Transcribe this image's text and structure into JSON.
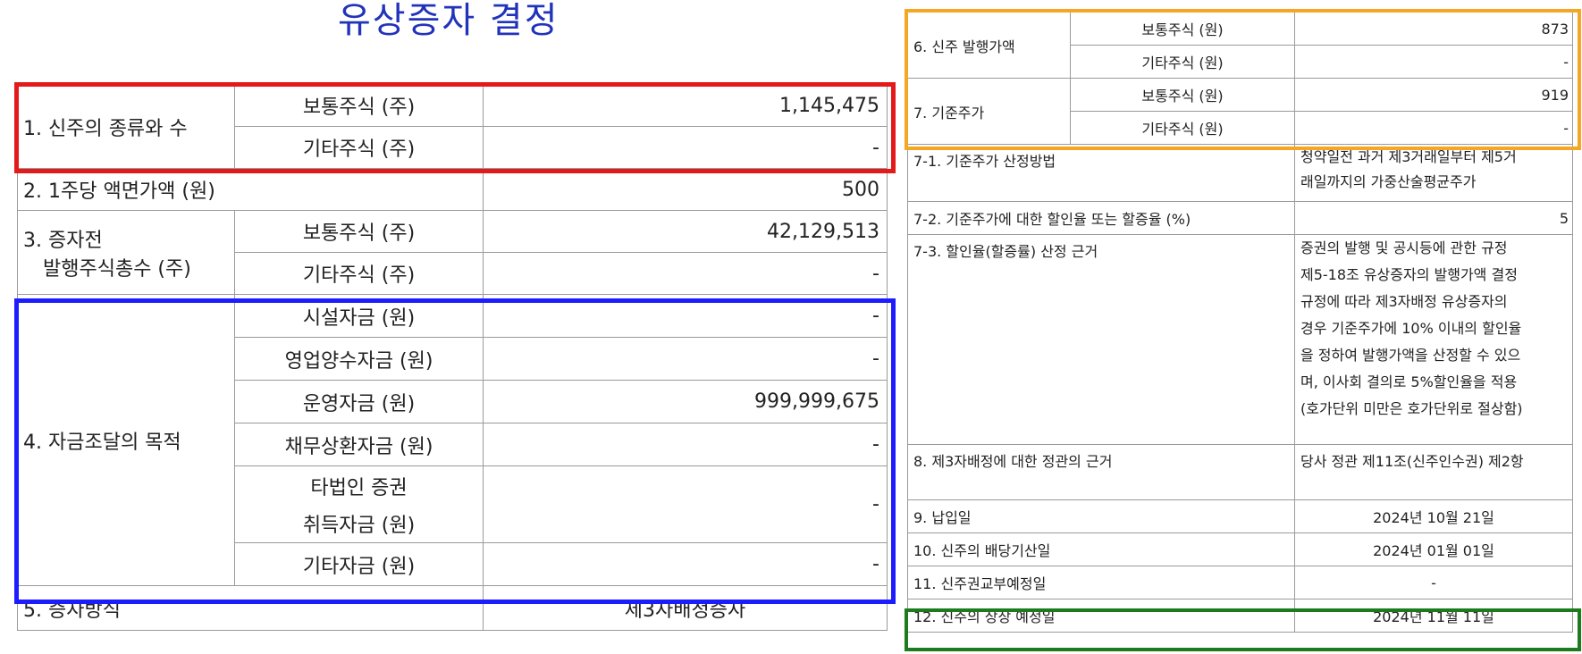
{
  "title": "유상증자 결정",
  "left": {
    "r1_label": "1. 신주의 종류와 수",
    "r1a_sub": "보통주식 (주)",
    "r1a_val": "1,145,475",
    "r1b_sub": "기타주식 (주)",
    "r1b_val": "-",
    "r2_label": "2. 1주당 액면가액 (원)",
    "r2_val": "500",
    "r3_label_1": "3. 증자전",
    "r3_label_2": "발행주식총수 (주)",
    "r3a_sub": "보통주식 (주)",
    "r3a_val": "42,129,513",
    "r3b_sub": "기타주식 (주)",
    "r3b_val": "-",
    "r4_label": "4. 자금조달의 목적",
    "r4_items": [
      {
        "sub": "시설자금 (원)",
        "val": "-"
      },
      {
        "sub": "영업양수자금 (원)",
        "val": "-"
      },
      {
        "sub": "운영자금 (원)",
        "val": "999,999,675"
      },
      {
        "sub": "채무상환자금 (원)",
        "val": "-"
      },
      {
        "sub_1": "타법인 증권",
        "sub_2": "취득자금 (원)",
        "val": "-"
      },
      {
        "sub": "기타자금 (원)",
        "val": "-"
      }
    ],
    "r5_label": "5. 증자방식",
    "r5_val": "제3자배정증자"
  },
  "right": {
    "r6_label": "6. 신주 발행가액",
    "r6a_sub": "보통주식 (원)",
    "r6a_val": "873",
    "r6b_sub": "기타주식 (원)",
    "r6b_val": "-",
    "r7_label": "7. 기준주가",
    "r7a_sub": "보통주식 (원)",
    "r7a_val": "919",
    "r7b_sub": "기타주식 (원)",
    "r7b_val": "-",
    "r71_label": "7-1. 기준주가 산정방법",
    "r71_val_1": "청약일전 과거 제3거래일부터 제5거",
    "r71_val_2": "래일까지의 가중산술평균주가",
    "r72_label": "7-2. 기준주가에 대한 할인율 또는 할증율 (%)",
    "r72_val": "5",
    "r73_label": "7-3. 할인율(할증률) 산정 근거",
    "r73_lines": [
      "증권의 발행 및 공시등에 관한 규정",
      "제5-18조 유상증자의 발행가액 결정",
      "규정에 따라 제3자배정 유상증자의",
      "경우 기준주가에 10% 이내의 할인율",
      "을 정하여 발행가액을 산정할 수 있으",
      "며, 이사회 결의로 5%할인율을 적용",
      "(호가단위 미만은 호가단위로 절상함)"
    ],
    "r8_label": "8. 제3자배정에 대한 정관의 근거",
    "r8_val": "당사 정관 제11조(신주인수권) 제2항",
    "r9_label": "9. 납입일",
    "r9_val": "2024년 10월 21일",
    "r10_label": "10. 신주의 배당기산일",
    "r10_val": "2024년 01월 01일",
    "r11_label": "11. 신주권교부예정일",
    "r11_val": "-",
    "r12_label": "12. 신주의 상장 예정일",
    "r12_val": "2024년 11월 11일"
  },
  "colors": {
    "red": "#e41919",
    "blue": "#1c1cff",
    "orange": "#f5a623",
    "green": "#1d7a1d",
    "title": "#2233bb"
  }
}
